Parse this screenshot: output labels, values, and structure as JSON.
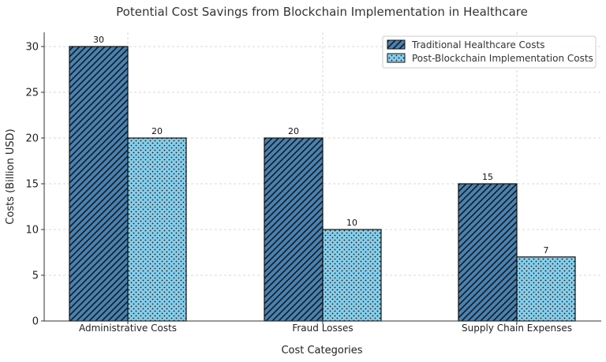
{
  "chart_data": {
    "type": "bar",
    "title": "Potential Cost Savings from Blockchain Implementation in Healthcare",
    "xlabel": "Cost Categories",
    "ylabel": "Costs (Billion USD)",
    "categories": [
      "Administrative Costs",
      "Fraud Losses",
      "Supply Chain Expenses"
    ],
    "series": [
      {
        "name": "Traditional Healthcare Costs",
        "values": [
          30,
          20,
          15
        ],
        "color": "#4682b4",
        "pattern": "diagonal-hatch"
      },
      {
        "name": "Post-Blockchain Implementation Costs",
        "values": [
          20,
          10,
          7
        ],
        "color": "#87ceeb",
        "pattern": "dots"
      }
    ],
    "ylim": [
      0,
      31.5
    ],
    "yticks": [
      "0",
      "5",
      "10",
      "15",
      "20",
      "25",
      "30"
    ],
    "grid": true,
    "legend_position": "top-right"
  }
}
